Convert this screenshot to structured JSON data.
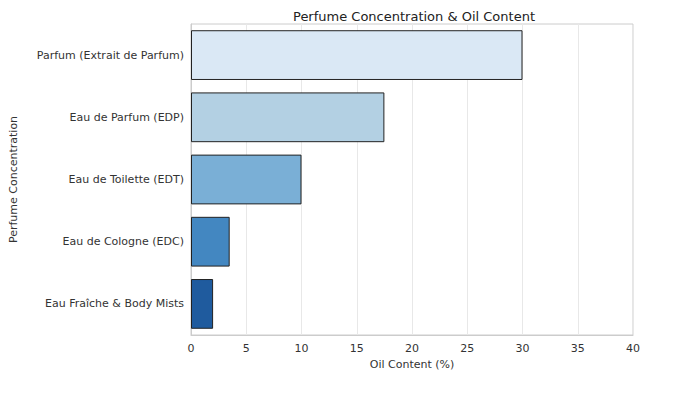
{
  "chart_data": {
    "type": "bar",
    "orientation": "horizontal",
    "title": "Perfume Concentration & Oil Content",
    "x_label": "Oil Content (%)",
    "y_label": "Perfume Concentration",
    "categories": [
      "Parfum (Extrait de Parfum)",
      "Eau de Parfum (EDP)",
      "Eau de Toilette (EDT)",
      "Eau de Cologne (EDC)",
      "Eau Fraîche & Body Mists"
    ],
    "values": [
      30,
      17.5,
      10,
      3.5,
      2
    ],
    "colors": [
      "#dae8f5",
      "#b3d0e3",
      "#7aafd6",
      "#4387c1",
      "#1f5b9e"
    ],
    "xlim": [
      0,
      40
    ],
    "xticks": [
      0,
      5,
      10,
      15,
      20,
      25,
      30,
      35,
      40
    ],
    "grid": true
  }
}
